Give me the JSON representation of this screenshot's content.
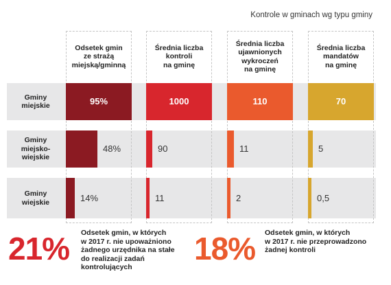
{
  "header": {
    "title": "Kontrole w gminach wg typu gminy"
  },
  "chart_data": {
    "type": "table",
    "title": "Kontrole w gminach wg typu gminy",
    "columns": [
      {
        "label": "Odsetek gmin\nze strażą\nmiejską/gminną",
        "color": "#8b1a22",
        "max": 100,
        "display_max": 100
      },
      {
        "label": "Średnia liczba\nkontroli\nna gminę",
        "color": "#d8262d",
        "max": 1000,
        "display_max": 1000
      },
      {
        "label": "Średnia liczba\nujawnionych\nwykroczeń\nna gminę",
        "color": "#ea5a2d",
        "max": 110,
        "display_max": 110
      },
      {
        "label": "Średnia liczba\nmandatów\nna gminę",
        "color": "#d7a62e",
        "max": 70,
        "display_max": 70
      }
    ],
    "rows": [
      {
        "label": "Gminy\nmiejskie",
        "values": [
          95,
          1000,
          110,
          70
        ],
        "labels": [
          "95%",
          "1000",
          "110",
          "70"
        ]
      },
      {
        "label": "Gminy\nmiejsko-\nwiejskie",
        "values": [
          48,
          90,
          11,
          5
        ],
        "labels": [
          "48%",
          "90",
          "11",
          "5"
        ]
      },
      {
        "label": "Gminy\nwiejskie",
        "values": [
          14,
          11,
          2,
          0.5
        ],
        "labels": [
          "14%",
          "11",
          "2",
          "0,5"
        ]
      }
    ]
  },
  "callouts": [
    {
      "number": "21%",
      "color": "#d8262d",
      "text": "Odsetek gmin, w których\nw 2017 r. nie upoważniono\nżadnego urzędnika na stałe\ndo realizacji zadań\nkontrolujących"
    },
    {
      "number": "18%",
      "color": "#ea5a2d",
      "text": "Odsetek gmin, w których\nw 2017 r. nie przeprowadzono\nżadnej kontroli"
    }
  ]
}
